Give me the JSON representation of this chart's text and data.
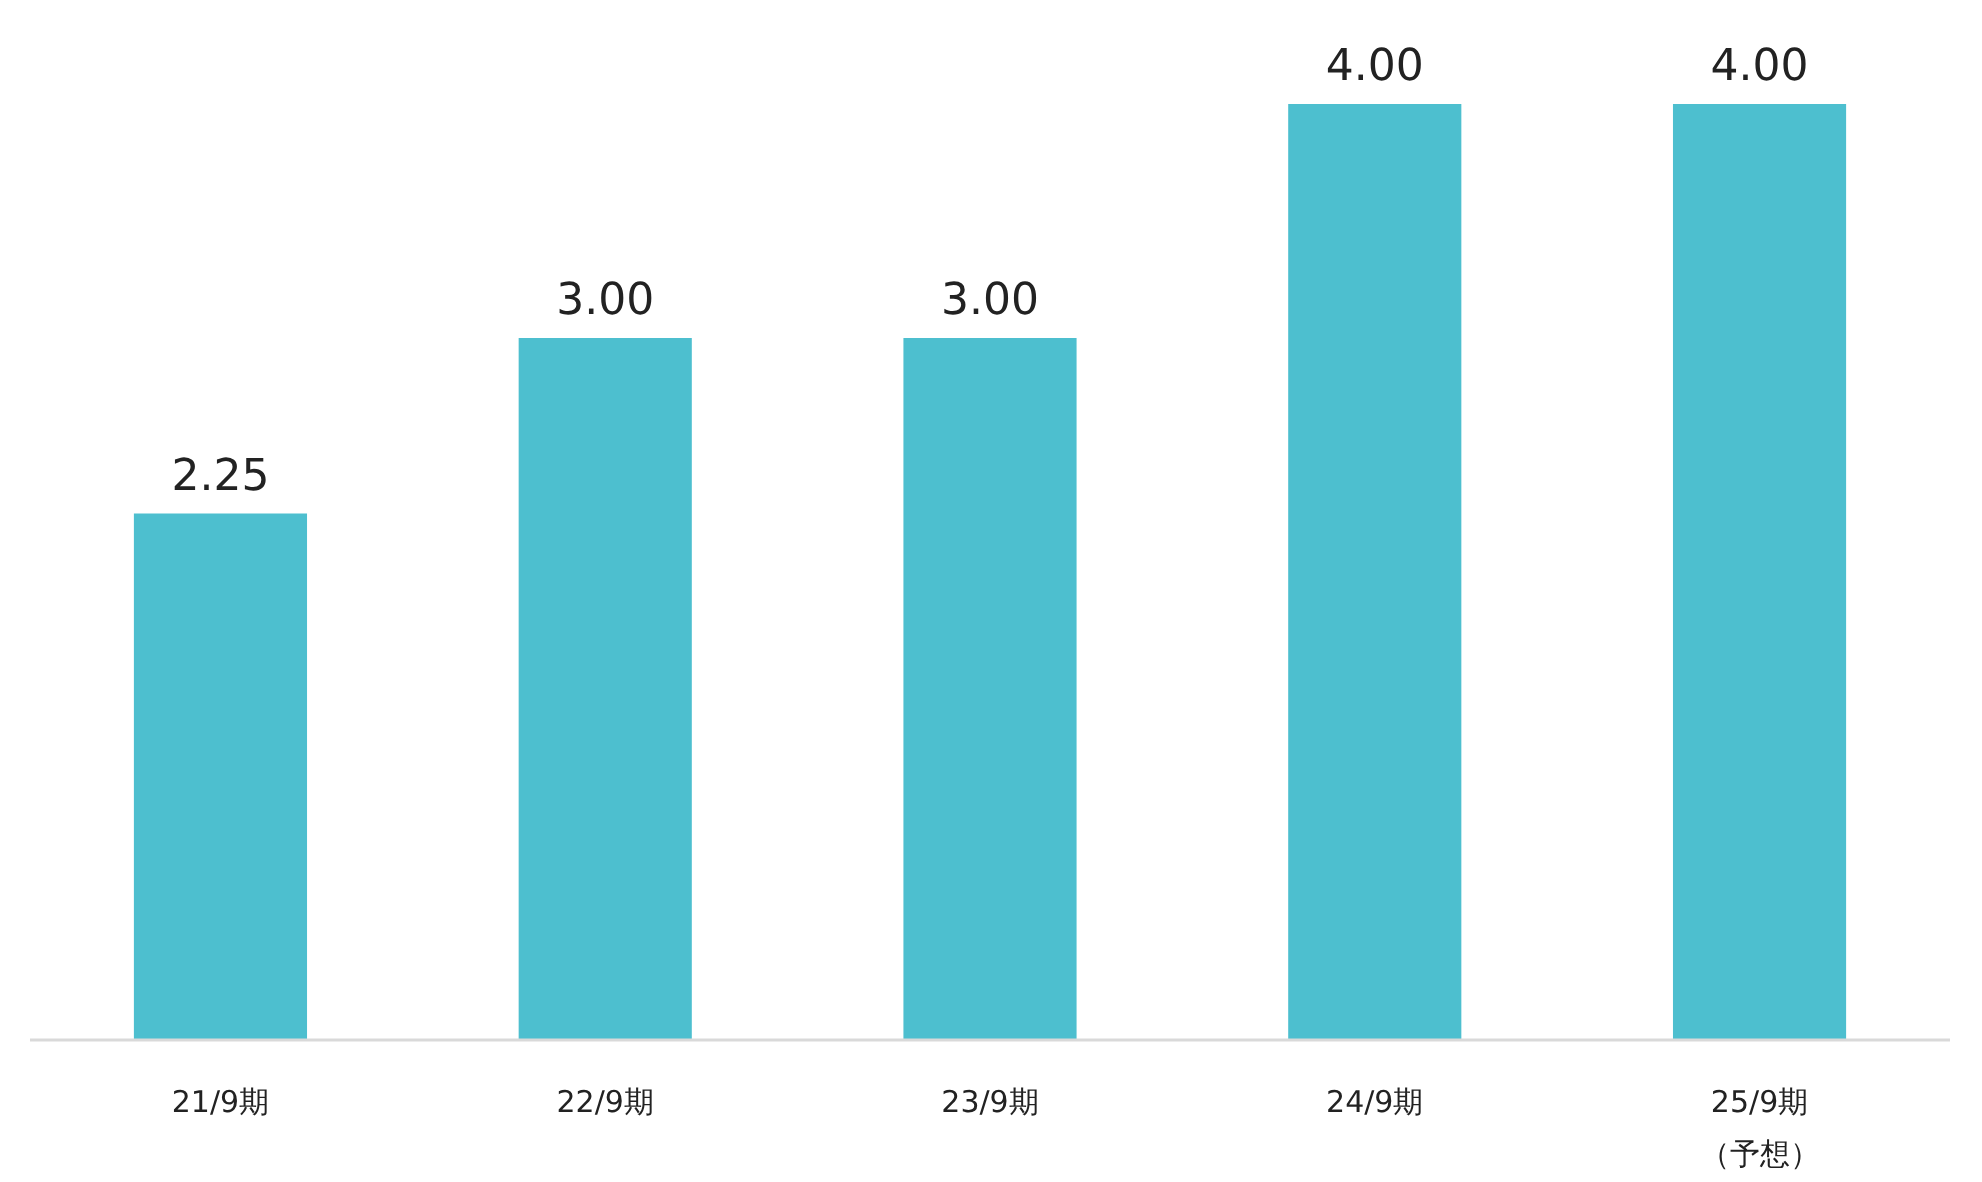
{
  "chart_data": {
    "type": "bar",
    "categories": [
      "21/9期",
      "22/9期",
      "23/9期",
      "24/9期",
      "25/9期（予想）"
    ],
    "values": [
      2.25,
      3.0,
      3.0,
      4.0,
      4.0
    ],
    "value_labels": [
      "2.25",
      "3.00",
      "3.00",
      "4.00",
      "4.00"
    ],
    "color": "#4dbfcf"
  }
}
